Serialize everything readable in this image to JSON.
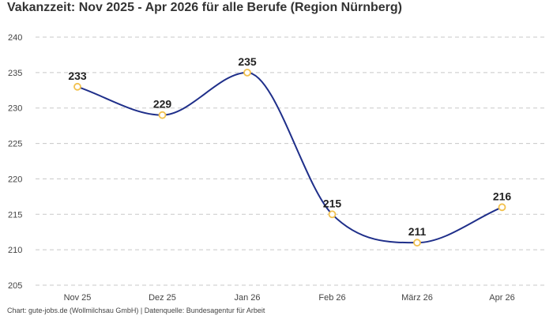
{
  "chart_data": {
    "type": "line",
    "title": "Vakanzzeit: Nov 2025 - Apr 2026 für alle Berufe (Region Nürnberg)",
    "categories": [
      "Nov 25",
      "Dez 25",
      "Jan 26",
      "Feb 26",
      "März 26",
      "Apr 26"
    ],
    "series": [
      {
        "values": [
          233,
          229,
          235,
          215,
          211,
          216
        ]
      }
    ],
    "data_labels": [
      "233",
      "229",
      "235",
      "215",
      "211",
      "216"
    ],
    "ylim": [
      205,
      240
    ],
    "yticks": [
      205,
      210,
      215,
      220,
      225,
      230,
      235,
      240
    ],
    "grid": true,
    "line_color": "#1f2f8a",
    "marker_color": "#f2c14e",
    "smooth": true
  },
  "footer": "Chart: gute-jobs.de (Wollmilchsau GmbH) | Datenquelle: Bundesagentur für Arbeit"
}
